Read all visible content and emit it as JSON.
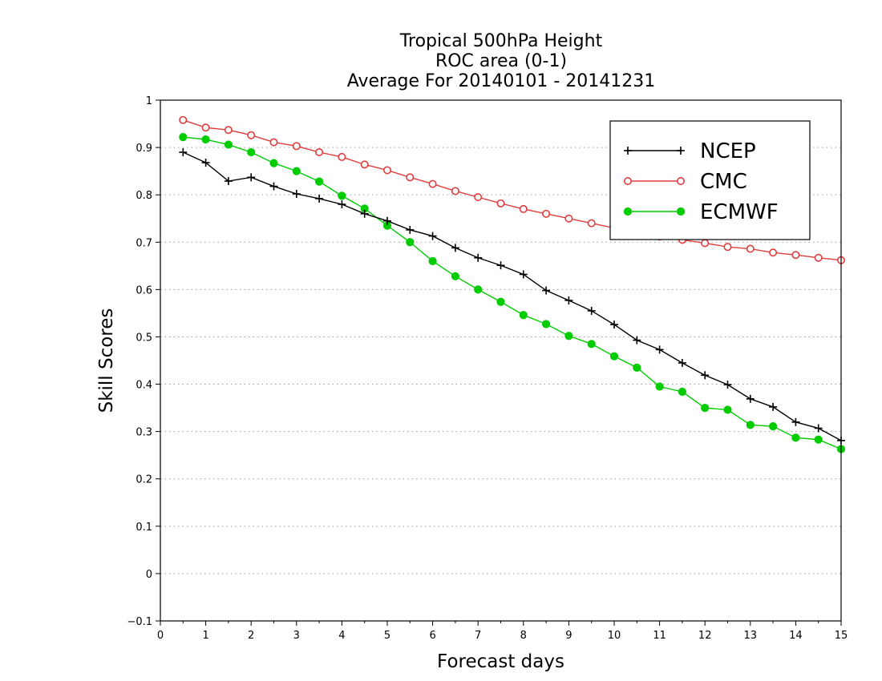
{
  "chart_data": {
    "type": "line",
    "title": [
      "Tropical 500hPa Height",
      "ROC area (0-1)",
      "Average For 20140101 - 20141231"
    ],
    "xlabel": "Forecast days",
    "ylabel": "Skill Scores",
    "xlim": [
      0,
      15
    ],
    "ylim": [
      -0.1,
      1
    ],
    "xticks": [
      0,
      1,
      2,
      3,
      4,
      5,
      6,
      7,
      8,
      9,
      10,
      11,
      12,
      13,
      14,
      15
    ],
    "yticks": [
      -0.1,
      0,
      0.1,
      0.2,
      0.3,
      0.4,
      0.5,
      0.6,
      0.7,
      0.8,
      0.9,
      1
    ],
    "ytick_labels": [
      "−0.1",
      "0",
      "0.1",
      "0.2",
      "0.3",
      "0.4",
      "0.5",
      "0.6",
      "0.7",
      "0.8",
      "0.9",
      "1"
    ],
    "grid": "horizontal dotted",
    "legend_position": "top-right",
    "x": [
      0.5,
      1,
      1.5,
      2,
      2.5,
      3,
      3.5,
      4,
      4.5,
      5,
      5.5,
      6,
      6.5,
      7,
      7.5,
      8,
      8.5,
      9,
      9.5,
      10,
      10.5,
      11,
      11.5,
      12,
      12.5,
      13,
      13.5,
      14,
      14.5,
      15
    ],
    "series": [
      {
        "name": "NCEP",
        "color": "#000000",
        "marker": "plus",
        "values": [
          0.89,
          0.868,
          0.829,
          0.837,
          0.818,
          0.802,
          0.792,
          0.78,
          0.76,
          0.745,
          0.726,
          0.713,
          0.688,
          0.667,
          0.651,
          0.632,
          0.598,
          0.577,
          0.555,
          0.526,
          0.493,
          0.473,
          0.445,
          0.419,
          0.399,
          0.369,
          0.352,
          0.32,
          0.307,
          0.281
        ]
      },
      {
        "name": "CMC",
        "color": "#e03c3c",
        "marker": "open-circle",
        "values": [
          0.958,
          0.942,
          0.937,
          0.926,
          0.911,
          0.903,
          0.89,
          0.88,
          0.864,
          0.852,
          0.837,
          0.823,
          0.808,
          0.795,
          0.782,
          0.77,
          0.76,
          0.75,
          0.74,
          0.73,
          0.72,
          0.712,
          0.705,
          0.698,
          0.69,
          0.686,
          0.678,
          0.673,
          0.667,
          0.662
        ]
      },
      {
        "name": "ECMWF",
        "color": "#00cc00",
        "marker": "filled-circle",
        "values": [
          0.922,
          0.917,
          0.906,
          0.89,
          0.867,
          0.85,
          0.828,
          0.798,
          0.771,
          0.735,
          0.7,
          0.66,
          0.628,
          0.6,
          0.574,
          0.546,
          0.527,
          0.502,
          0.485,
          0.459,
          0.435,
          0.395,
          0.384,
          0.35,
          0.346,
          0.314,
          0.311,
          0.287,
          0.283,
          0.263
        ]
      }
    ]
  }
}
